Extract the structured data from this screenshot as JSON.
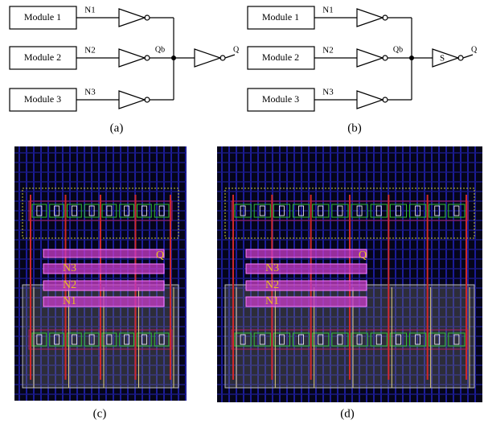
{
  "panels": [
    {
      "label": "(a)",
      "modules": [
        "Module 1",
        "Module 2",
        "Module 3"
      ],
      "nets": [
        "N1",
        "N2",
        "N3"
      ],
      "node": "Qb",
      "output": "Q"
    },
    {
      "label": "(b)",
      "modules": [
        "Module 1",
        "Module 2",
        "Module 3"
      ],
      "nets": [
        "N1",
        "N2",
        "N3"
      ],
      "node": "Qb",
      "gate": "S",
      "output": "Q"
    },
    {
      "label": "(c)",
      "nets": [
        "N3",
        "N2",
        "N1"
      ],
      "output": "Q"
    },
    {
      "label": "(d)",
      "nets": [
        "N3",
        "N2",
        "N1"
      ],
      "output": "Q"
    }
  ]
}
